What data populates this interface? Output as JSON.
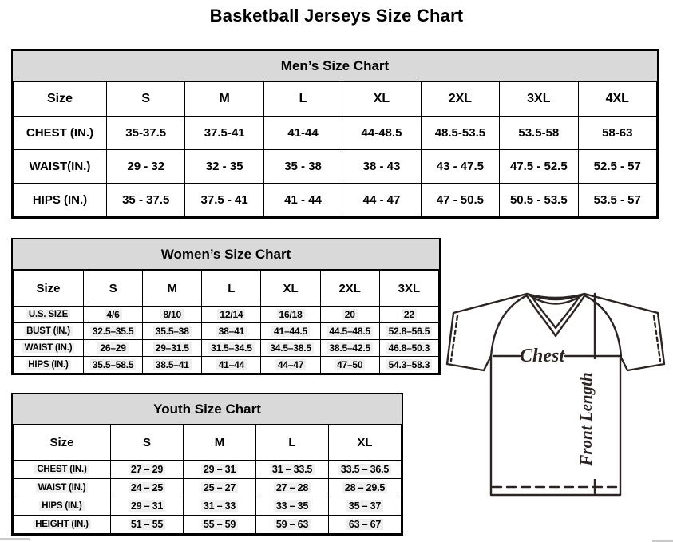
{
  "page_title": "Basketball Jerseys Size Chart",
  "mens": {
    "title": "Men’s Size Chart",
    "columns": [
      "Size",
      "S",
      "M",
      "L",
      "XL",
      "2XL",
      "3XL",
      "4XL"
    ],
    "rows": [
      {
        "label": "CHEST (IN.)",
        "values": [
          "35-37.5",
          "37.5-41",
          "41-44",
          "44-48.5",
          "48.5-53.5",
          "53.5-58",
          "58-63"
        ]
      },
      {
        "label": "WAIST(IN.)",
        "values": [
          "29 - 32",
          "32 - 35",
          "35 - 38",
          "38 - 43",
          "43 - 47.5",
          "47.5 - 52.5",
          "52.5 - 57"
        ]
      },
      {
        "label": "HIPS (IN.)",
        "values": [
          "35 - 37.5",
          "37.5 - 41",
          "41 - 44",
          "44 - 47",
          "47 - 50.5",
          "50.5 - 53.5",
          "53.5 - 57"
        ]
      }
    ]
  },
  "womens": {
    "title": "Women’s Size Chart",
    "columns": [
      "Size",
      "S",
      "M",
      "L",
      "XL",
      "2XL",
      "3XL"
    ],
    "rows": [
      {
        "label": "U.S. SIZE",
        "values": [
          "4/6",
          "8/10",
          "12/14",
          "16/18",
          "20",
          "22"
        ]
      },
      {
        "label": "BUST (IN.)",
        "values": [
          "32.5–35.5",
          "35.5–38",
          "38–41",
          "41–44.5",
          "44.5–48.5",
          "52.8–56.5"
        ]
      },
      {
        "label": "WAIST (IN.)",
        "values": [
          "26–29",
          "29–31.5",
          "31.5–34.5",
          "34.5–38.5",
          "38.5–42.5",
          "46.8–50.3"
        ]
      },
      {
        "label": "HIPS (IN.)",
        "values": [
          "35.5–58.5",
          "38.5–41",
          "41–44",
          "44–47",
          "47–50",
          "54.3–58.3"
        ]
      }
    ]
  },
  "youth": {
    "title": "Youth Size Chart",
    "columns": [
      "Size",
      "S",
      "M",
      "L",
      "XL"
    ],
    "rows": [
      {
        "label": "CHEST (IN.)",
        "values": [
          "27 – 29",
          "29 – 31",
          "31 – 33.5",
          "33.5 – 36.5"
        ]
      },
      {
        "label": "WAIST (IN.)",
        "values": [
          "24 – 25",
          "25 – 27",
          "27 – 28",
          "28 – 29.5"
        ]
      },
      {
        "label": "HIPS (IN.)",
        "values": [
          "29 – 31",
          "31 – 33",
          "33 – 35",
          "35 – 37"
        ]
      },
      {
        "label": "HEIGHT (IN.)",
        "values": [
          "51 – 55",
          "55 – 59",
          "59 – 63",
          "63 – 67"
        ]
      }
    ]
  },
  "diagram": {
    "chest_label": "Chest",
    "front_length_label": "Front Length"
  },
  "colors": {
    "header_band_bg": "#d9d9d9",
    "table_border": "#000000",
    "diagram_stroke": "#2b2422"
  }
}
